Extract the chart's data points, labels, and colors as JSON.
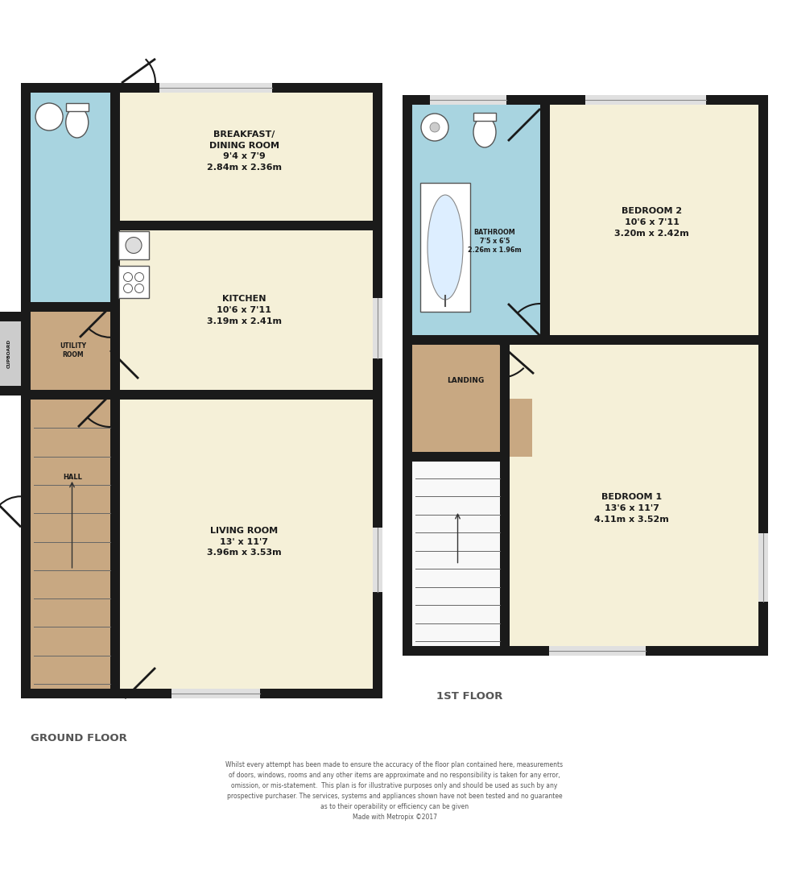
{
  "background_color": "#ffffff",
  "wall_color": "#1a1a1a",
  "wt": 0.12,
  "room_colors": {
    "living_room": "#f5f0d8",
    "kitchen": "#f5f0d8",
    "breakfast": "#f5f0d8",
    "hall": "#c8a882",
    "utility": "#c8a882",
    "bathroom_gf": "#a8d4e0",
    "cupboard": "#cccccc",
    "bedroom1": "#f5f0d8",
    "bedroom2": "#f5f0d8",
    "bathroom_1f": "#a8d4e0",
    "landing": "#c8a882"
  },
  "shadow_color": "#c0c0c0",
  "ground_floor_label": "GROUND FLOOR",
  "first_floor_label": "1ST FLOOR",
  "disclaimer": "Whilst every attempt has been made to ensure the accuracy of the floor plan contained here, measurements\nof doors, windows, rooms and any other items are approximate and no responsibility is taken for any error,\nomission, or mis-statement.  This plan is for illustrative purposes only and should be used as such by any\nprospective purchaser. The services, systems and appliances shown have not been tested and no guarantee\nas to their operability or efficiency can be given\nMade with Metropix ©2017"
}
